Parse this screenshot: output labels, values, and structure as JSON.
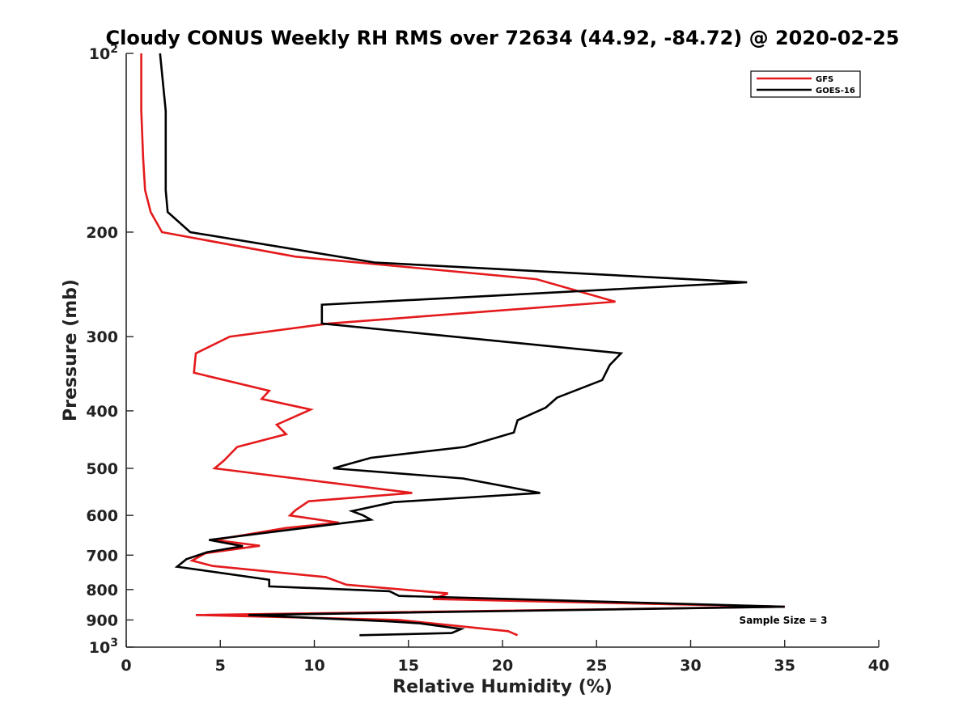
{
  "chart_data": {
    "type": "line",
    "title": "Cloudy CONUS Weekly RH RMS over 72634 (44.92, -84.72) @ 2020-02-25",
    "xlabel": "Relative Humidity (%)",
    "ylabel": "Pressure (mb)",
    "xlim": [
      0,
      40
    ],
    "ylim": [
      100,
      1000
    ],
    "yscale": "log",
    "y_reversed": true,
    "x_ticks": [
      0,
      5,
      10,
      15,
      20,
      25,
      30,
      35,
      40
    ],
    "x_tick_labels": [
      "0",
      "5",
      "10",
      "15",
      "20",
      "25",
      "30",
      "35",
      "40"
    ],
    "y_ticks": [
      100,
      200,
      300,
      400,
      500,
      600,
      700,
      800,
      900,
      1000
    ],
    "y_tick_labels": [
      {
        "base": "10",
        "exp": "2"
      },
      {
        "base": "200"
      },
      {
        "base": "300"
      },
      {
        "base": "400"
      },
      {
        "base": "500"
      },
      {
        "base": "600"
      },
      {
        "base": "700"
      },
      {
        "base": "800"
      },
      {
        "base": "900"
      },
      {
        "base": "10",
        "exp": "3"
      }
    ],
    "grid": false,
    "legend_position": "top-right",
    "annotation": "Sample Size = 3",
    "series": [
      {
        "name": "GFS",
        "color": "#e41a1c",
        "points": [
          [
            0.8,
            100
          ],
          [
            0.8,
            125
          ],
          [
            0.9,
            150
          ],
          [
            1.0,
            170
          ],
          [
            1.3,
            185
          ],
          [
            1.9,
            200
          ],
          [
            9.0,
            220
          ],
          [
            21.8,
            240
          ],
          [
            26.0,
            262
          ],
          [
            10.8,
            285
          ],
          [
            5.5,
            300
          ],
          [
            3.7,
            320
          ],
          [
            3.6,
            345
          ],
          [
            7.6,
            370
          ],
          [
            7.2,
            382
          ],
          [
            9.8,
            398
          ],
          [
            8.0,
            422
          ],
          [
            8.5,
            438
          ],
          [
            5.9,
            460
          ],
          [
            5.2,
            485
          ],
          [
            4.7,
            500
          ],
          [
            15.2,
            550
          ],
          [
            9.7,
            568
          ],
          [
            9.0,
            588
          ],
          [
            8.7,
            600
          ],
          [
            11.3,
            617
          ],
          [
            8.5,
            630
          ],
          [
            4.7,
            660
          ],
          [
            7.1,
            675
          ],
          [
            4.2,
            695
          ],
          [
            3.5,
            715
          ],
          [
            4.6,
            730
          ],
          [
            10.6,
            762
          ],
          [
            11.7,
            785
          ],
          [
            17.1,
            812
          ],
          [
            16.3,
            830
          ],
          [
            35.0,
            855
          ],
          [
            3.7,
            883
          ],
          [
            14.5,
            900
          ],
          [
            20.3,
            940
          ],
          [
            20.8,
            955
          ]
        ]
      },
      {
        "name": "GOES-16",
        "color": "#000000",
        "points": [
          [
            1.8,
            100
          ],
          [
            2.1,
            125
          ],
          [
            2.1,
            150
          ],
          [
            2.1,
            170
          ],
          [
            2.2,
            185
          ],
          [
            3.4,
            200
          ],
          [
            13.2,
            225
          ],
          [
            33.0,
            243
          ],
          [
            10.4,
            265
          ],
          [
            10.4,
            285
          ],
          [
            26.3,
            320
          ],
          [
            25.7,
            335
          ],
          [
            25.3,
            355
          ],
          [
            22.9,
            380
          ],
          [
            22.3,
            395
          ],
          [
            20.8,
            415
          ],
          [
            20.6,
            435
          ],
          [
            18.0,
            460
          ],
          [
            13.0,
            480
          ],
          [
            11.0,
            500
          ],
          [
            17.9,
            520
          ],
          [
            22.0,
            550
          ],
          [
            14.2,
            570
          ],
          [
            12.0,
            590
          ],
          [
            12.6,
            600
          ],
          [
            13.0,
            610
          ],
          [
            4.4,
            660
          ],
          [
            6.2,
            676
          ],
          [
            4.3,
            692
          ],
          [
            3.2,
            711
          ],
          [
            2.7,
            732
          ],
          [
            7.6,
            770
          ],
          [
            7.6,
            790
          ],
          [
            14.0,
            805
          ],
          [
            14.5,
            820
          ],
          [
            35.0,
            855
          ],
          [
            6.5,
            883
          ],
          [
            14.0,
            905
          ],
          [
            15.6,
            912
          ],
          [
            17.8,
            932
          ],
          [
            17.3,
            947
          ],
          [
            12.4,
            955
          ]
        ]
      }
    ]
  }
}
